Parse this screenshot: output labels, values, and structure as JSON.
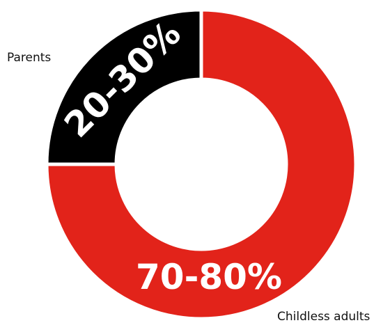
{
  "chart_data": {
    "type": "pie",
    "variant": "donut",
    "title": "",
    "series": [
      {
        "name": "Childless adults",
        "value_label": "70-80%",
        "value": 75,
        "color": "#e2231a"
      },
      {
        "name": "Parents",
        "value_label": "20-30%",
        "value": 25,
        "color": "#000000"
      }
    ]
  }
}
